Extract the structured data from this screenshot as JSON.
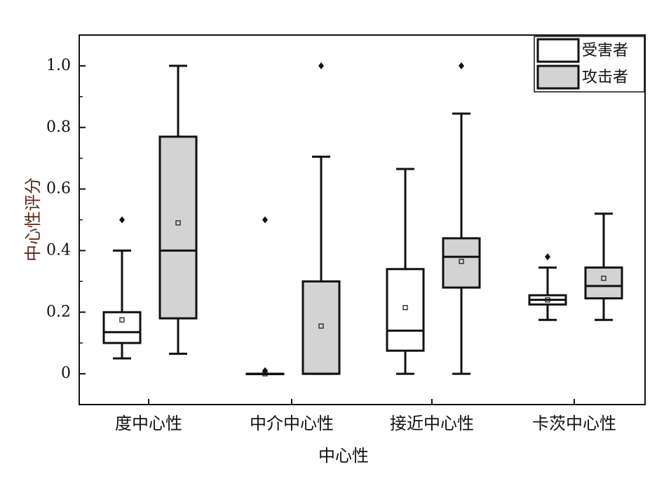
{
  "chart_data": {
    "type": "box",
    "xlabel": "中心性",
    "ylabel": "中心性评分",
    "ylim": [
      -0.1,
      1.1
    ],
    "yticks": [
      0,
      0.2,
      0.4,
      0.6,
      0.8,
      1.0
    ],
    "ytick_labels": [
      "0",
      "0.2",
      "0.4",
      "0.6",
      "0.8",
      "1.0"
    ],
    "categories": [
      "度中心性",
      "中介中心性",
      "接近中心性",
      "卡茨中心性"
    ],
    "legend_position": "top-right",
    "series": [
      {
        "name": "受害者",
        "fill": "#ffffff",
        "boxes": [
          {
            "min": 0.05,
            "q1": 0.1,
            "median": 0.135,
            "q3": 0.2,
            "max": 0.4,
            "mean": 0.175,
            "outliers": [
              0.5
            ]
          },
          {
            "min": 0.0,
            "q1": 0.0,
            "median": 0.0,
            "q3": 0.0,
            "max": 0.0,
            "mean": 0.0,
            "outliers": [
              0.01,
              0.5
            ]
          },
          {
            "min": 0.0,
            "q1": 0.075,
            "median": 0.14,
            "q3": 0.34,
            "max": 0.665,
            "mean": 0.215,
            "outliers": []
          },
          {
            "min": 0.175,
            "q1": 0.225,
            "median": 0.24,
            "q3": 0.255,
            "max": 0.345,
            "mean": 0.24,
            "outliers": [
              0.38
            ]
          }
        ]
      },
      {
        "name": "攻击者",
        "fill": "#d3d3d3",
        "boxes": [
          {
            "min": 0.065,
            "q1": 0.18,
            "median": 0.4,
            "q3": 0.77,
            "max": 1.0,
            "mean": 0.49,
            "outliers": []
          },
          {
            "min": 0.0,
            "q1": 0.0,
            "median": 0.0,
            "q3": 0.3,
            "max": 0.705,
            "mean": 0.155,
            "outliers": [
              1.0
            ]
          },
          {
            "min": 0.0,
            "q1": 0.28,
            "median": 0.38,
            "q3": 0.44,
            "max": 0.845,
            "mean": 0.365,
            "outliers": [
              1.0
            ]
          },
          {
            "min": 0.175,
            "q1": 0.245,
            "median": 0.285,
            "q3": 0.345,
            "max": 0.52,
            "mean": 0.31,
            "outliers": []
          }
        ]
      }
    ]
  }
}
